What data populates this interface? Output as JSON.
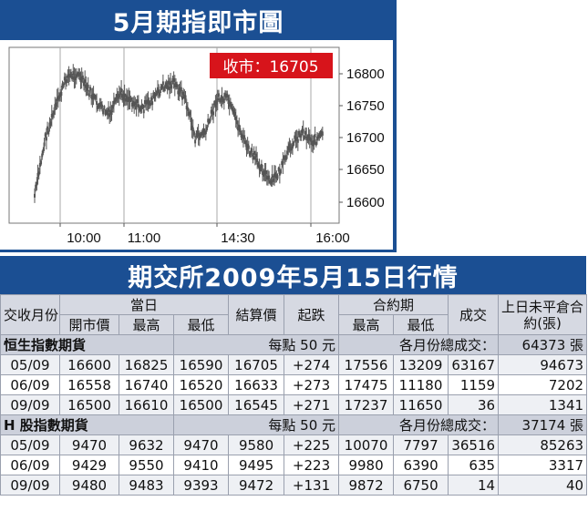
{
  "chart": {
    "title": "5月期指即市圖",
    "close_label": "收市：16705",
    "colors": {
      "frame": "#1b4f93",
      "candle": "#555555",
      "close_box": "#d7141b",
      "vline": "#aaaaaa"
    }
  },
  "chart_data": {
    "type": "line",
    "title": "5月期指即市圖",
    "annotation": "收市：16705",
    "xlabel": "",
    "ylabel": "",
    "x_tick_labels": [
      "10:00",
      "11:00",
      "14:30",
      "16:00"
    ],
    "y_tick_labels": [
      "16800",
      "16750",
      "16700",
      "16650",
      "16600"
    ],
    "ylim": [
      16580,
      16840
    ],
    "grid": "vertical",
    "x": [
      "09:45",
      "09:55",
      "10:05",
      "10:15",
      "10:25",
      "10:35",
      "10:45",
      "10:55",
      "11:05",
      "11:15",
      "11:25",
      "11:35",
      "11:45",
      "11:55",
      "12:05",
      "12:15",
      "12:25",
      "14:30",
      "14:40",
      "14:50",
      "15:00",
      "15:10",
      "15:20",
      "15:30",
      "15:40",
      "15:50",
      "16:00",
      "16:10"
    ],
    "series": [
      {
        "values": [
          16610,
          16700,
          16750,
          16795,
          16800,
          16775,
          16750,
          16735,
          16770,
          16760,
          16745,
          16760,
          16780,
          16785,
          16765,
          16700,
          16710,
          16760,
          16760,
          16720,
          16680,
          16660,
          16630,
          16650,
          16690,
          16710,
          16695,
          16705
        ]
      }
    ]
  },
  "table": {
    "title": "期交所2009年5月15日行情",
    "headers": {
      "contract": "交收月份",
      "day": "當日",
      "open": "開市價",
      "high": "最高",
      "low": "最低",
      "settle": "結算價",
      "change": "起跌",
      "lifetime": "合約期",
      "lt_high": "最高",
      "lt_low": "最低",
      "volume": "成交",
      "oi": "上日未平倉合約(張)"
    },
    "sections": [
      {
        "name": "恒生指數期貨",
        "per_point": "每點 50 元",
        "total_label": "各月份總成交：",
        "total_value": "64373 張",
        "rows": [
          [
            "05/09",
            "16600",
            "16825",
            "16590",
            "16705",
            "+274",
            "17556",
            "13209",
            "63167",
            "94673"
          ],
          [
            "06/09",
            "16558",
            "16740",
            "16520",
            "16633",
            "+273",
            "17475",
            "11180",
            "1159",
            "7202"
          ],
          [
            "09/09",
            "16500",
            "16610",
            "16500",
            "16545",
            "+271",
            "17237",
            "11650",
            "36",
            "1341"
          ]
        ]
      },
      {
        "name": "H 股指數期貨",
        "per_point": "每點 50 元",
        "total_label": "各月份總成交：",
        "total_value": "37174 張",
        "rows": [
          [
            "05/09",
            "9470",
            "9632",
            "9470",
            "9580",
            "+225",
            "10070",
            "7797",
            "36516",
            "85263"
          ],
          [
            "06/09",
            "9429",
            "9550",
            "9410",
            "9495",
            "+223",
            "9980",
            "6390",
            "635",
            "3317"
          ],
          [
            "09/09",
            "9480",
            "9483",
            "9393",
            "9472",
            "+131",
            "9872",
            "6750",
            "14",
            "40"
          ]
        ]
      }
    ]
  }
}
